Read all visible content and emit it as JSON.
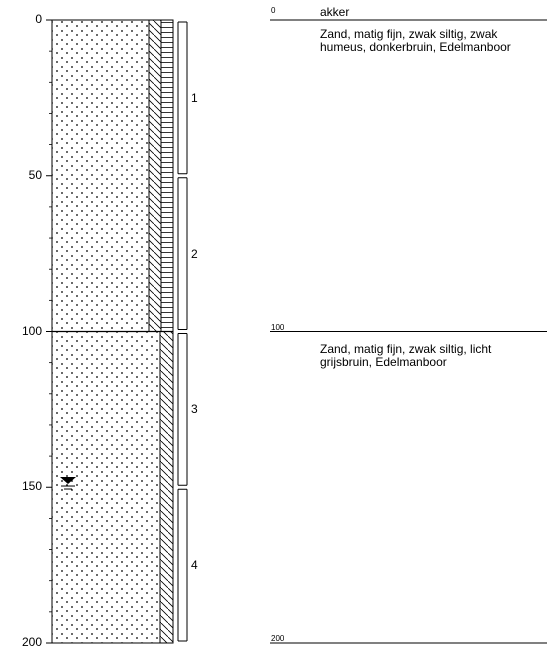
{
  "depth_axis": {
    "ticks": [
      "0",
      "50",
      "100",
      "150",
      "200"
    ]
  },
  "samples": [
    {
      "number": "1",
      "top": 0,
      "bottom": 50
    },
    {
      "number": "2",
      "top": 50,
      "bottom": 100
    },
    {
      "number": "3",
      "top": 100,
      "bottom": 150
    },
    {
      "number": "4",
      "top": 150,
      "bottom": 200
    }
  ],
  "groundwater_level": 148,
  "layers": [
    {
      "top_label": "0",
      "label": "akker",
      "description": "Zand, matig fijn, zwak siltig, zwak humeus, donkerbruin, Edelmanboor",
      "top": 0,
      "bottom": 100
    },
    {
      "top_label": "100",
      "label": "",
      "description": "Zand, matig fijn, zwak siltig, licht grijsbruin, Edelmanboor",
      "top": 100,
      "bottom": 200
    }
  ],
  "bottom_label": "200",
  "legend_symbols": [
    "sand-dots",
    "humus-diagonal-hatch",
    "horizontal-hatch",
    "groundwater-triangle-icon"
  ]
}
